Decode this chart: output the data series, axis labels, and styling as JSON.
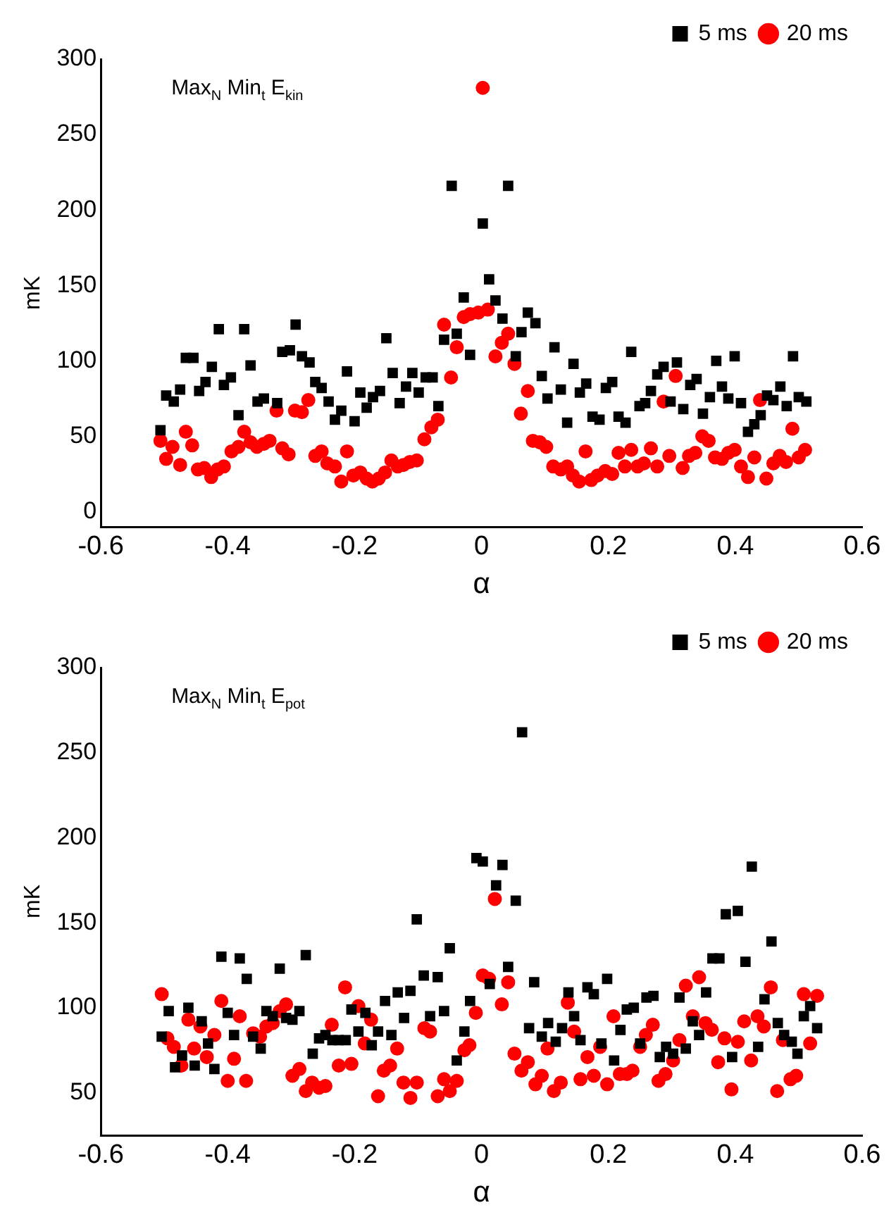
{
  "chart_data": [
    {
      "type": "scatter",
      "title": "Max$_{N}$ Min$_{t}$ E$_{kin}$",
      "xlabel": "α",
      "ylabel": "mK",
      "xlim": [
        -0.6,
        0.6
      ],
      "xticks": [
        -0.6,
        -0.4,
        -0.2,
        0,
        0.2,
        0.4,
        0.6
      ],
      "ylim": [
        -10,
        300
      ],
      "yticks": [
        0,
        50,
        100,
        150,
        200,
        250,
        300
      ],
      "legend": "top right",
      "series": [
        {
          "name": "5 ms",
          "color": "#000000",
          "marker": "square",
          "x": [
            -0.506,
            -0.497,
            -0.485,
            -0.475,
            -0.466,
            -0.454,
            -0.445,
            -0.435,
            -0.425,
            -0.414,
            -0.406,
            -0.395,
            -0.383,
            -0.374,
            -0.364,
            -0.353,
            -0.343,
            -0.322,
            -0.314,
            -0.302,
            -0.293,
            -0.283,
            -0.271,
            -0.262,
            -0.252,
            -0.241,
            -0.231,
            -0.221,
            -0.212,
            -0.2,
            -0.191,
            -0.181,
            -0.171,
            -0.16,
            -0.15,
            -0.14,
            -0.129,
            -0.119,
            -0.109,
            -0.099,
            -0.088,
            -0.077,
            -0.068,
            -0.059,
            -0.047,
            -0.039,
            -0.028,
            -0.018,
            0.002,
            0.012,
            0.022,
            0.033,
            0.042,
            0.054,
            0.063,
            0.073,
            0.085,
            0.095,
            0.104,
            0.115,
            0.125,
            0.135,
            0.145,
            0.155,
            0.165,
            0.175,
            0.186,
            0.196,
            0.206,
            0.216,
            0.227,
            0.236,
            0.249,
            0.258,
            0.267,
            0.277,
            0.287,
            0.298,
            0.308,
            0.318,
            0.329,
            0.339,
            0.349,
            0.36,
            0.37,
            0.379,
            0.389,
            0.399,
            0.409,
            0.42,
            0.43,
            0.44,
            0.45,
            0.46,
            0.471,
            0.481,
            0.491,
            0.5,
            0.512
          ],
          "values": [
            54,
            77,
            73,
            81,
            102,
            102,
            80,
            86,
            96,
            121,
            84,
            89,
            64,
            121,
            97,
            73,
            75,
            72,
            106,
            107,
            124,
            103,
            99,
            86,
            82,
            73,
            61,
            67,
            93,
            60,
            79,
            69,
            76,
            80,
            115,
            92,
            72,
            83,
            92,
            79,
            89,
            89,
            70,
            114,
            216,
            118,
            142,
            104,
            191,
            154,
            140,
            128,
            216,
            103,
            119,
            132,
            125,
            90,
            75,
            109,
            81,
            59,
            98,
            79,
            85,
            63,
            61,
            82,
            86,
            63,
            59,
            106,
            70,
            72,
            80,
            91,
            96,
            73,
            99,
            68,
            84,
            88,
            65,
            76,
            100,
            83,
            75,
            103,
            72,
            53,
            58,
            64,
            77,
            74,
            83,
            70,
            103,
            76,
            73
          ]
        },
        {
          "name": "20 ms",
          "color": "#ff0000",
          "marker": "circle",
          "x": [
            -0.506,
            -0.497,
            -0.487,
            -0.475,
            -0.466,
            -0.456,
            -0.447,
            -0.437,
            -0.426,
            -0.416,
            -0.406,
            -0.394,
            -0.383,
            -0.374,
            -0.364,
            -0.354,
            -0.343,
            -0.334,
            -0.323,
            -0.314,
            -0.304,
            -0.294,
            -0.283,
            -0.273,
            -0.262,
            -0.252,
            -0.243,
            -0.231,
            -0.221,
            -0.212,
            -0.202,
            -0.191,
            -0.181,
            -0.172,
            -0.162,
            -0.152,
            -0.142,
            -0.132,
            -0.123,
            -0.113,
            -0.102,
            -0.09,
            -0.079,
            -0.069,
            -0.059,
            -0.048,
            -0.039,
            -0.028,
            -0.018,
            -0.005,
            0.002,
            0.01,
            0.022,
            0.032,
            0.042,
            0.052,
            0.062,
            0.073,
            0.081,
            0.092,
            0.102,
            0.113,
            0.125,
            0.135,
            0.144,
            0.154,
            0.164,
            0.173,
            0.183,
            0.195,
            0.206,
            0.216,
            0.226,
            0.236,
            0.246,
            0.256,
            0.267,
            0.277,
            0.287,
            0.296,
            0.306,
            0.317,
            0.327,
            0.337,
            0.348,
            0.358,
            0.368,
            0.379,
            0.389,
            0.399,
            0.409,
            0.42,
            0.43,
            0.439,
            0.449,
            0.46,
            0.47,
            0.48,
            0.49,
            0.5,
            0.51
          ],
          "values": [
            47,
            35,
            43,
            31,
            53,
            44,
            28,
            29,
            23,
            28,
            30,
            40,
            43,
            53,
            46,
            43,
            45,
            47,
            67,
            42,
            38,
            67,
            66,
            74,
            37,
            40,
            32,
            30,
            20,
            40,
            24,
            26,
            22,
            20,
            22,
            26,
            34,
            30,
            31,
            33,
            34,
            48,
            56,
            61,
            124,
            89,
            109,
            129,
            131,
            132,
            281,
            134,
            103,
            112,
            118,
            98,
            65,
            80,
            47,
            46,
            43,
            30,
            28,
            30,
            24,
            20,
            40,
            21,
            24,
            27,
            25,
            39,
            30,
            41,
            30,
            32,
            42,
            30,
            73,
            37,
            90,
            29,
            37,
            39,
            50,
            47,
            36,
            35,
            39,
            41,
            30,
            23,
            36,
            74,
            22,
            32,
            37,
            33,
            55,
            36,
            41
          ]
        }
      ]
    },
    {
      "type": "scatter",
      "title": "Max$_{N}$ Min$_{t}$ E$_{pot}$",
      "xlabel": "α",
      "ylabel": "mK",
      "xlim": [
        -0.6,
        0.6
      ],
      "xticks": [
        -0.6,
        -0.4,
        -0.2,
        0,
        0.2,
        0.4,
        0.6
      ],
      "ylim": [
        25,
        300
      ],
      "yticks": [
        50,
        100,
        150,
        200,
        250,
        300
      ],
      "legend": "top right",
      "series": [
        {
          "name": "5 ms",
          "color": "#000000",
          "marker": "square",
          "x": [
            -0.504,
            -0.493,
            -0.483,
            -0.472,
            -0.462,
            -0.452,
            -0.441,
            -0.431,
            -0.421,
            -0.41,
            -0.4,
            -0.39,
            -0.381,
            -0.37,
            -0.36,
            -0.348,
            -0.339,
            -0.329,
            -0.318,
            -0.308,
            -0.298,
            -0.287,
            -0.277,
            -0.266,
            -0.256,
            -0.246,
            -0.235,
            -0.225,
            -0.214,
            -0.205,
            -0.194,
            -0.183,
            -0.173,
            -0.163,
            -0.152,
            -0.142,
            -0.132,
            -0.122,
            -0.112,
            -0.102,
            -0.091,
            -0.081,
            -0.069,
            -0.059,
            -0.05,
            -0.039,
            -0.027,
            -0.018,
            -0.008,
            0.002,
            0.013,
            0.023,
            0.033,
            0.042,
            0.054,
            0.064,
            0.075,
            0.083,
            0.095,
            0.105,
            0.117,
            0.127,
            0.137,
            0.146,
            0.156,
            0.167,
            0.177,
            0.189,
            0.198,
            0.209,
            0.219,
            0.229,
            0.24,
            0.25,
            0.26,
            0.271,
            0.281,
            0.291,
            0.302,
            0.312,
            0.322,
            0.333,
            0.343,
            0.354,
            0.364,
            0.375,
            0.385,
            0.395,
            0.404,
            0.416,
            0.426,
            0.436,
            0.446,
            0.457,
            0.467,
            0.477,
            0.489,
            0.498,
            0.508,
            0.518,
            0.529
          ],
          "values": [
            83,
            98,
            65,
            72,
            100,
            66,
            92,
            79,
            64,
            130,
            97,
            84,
            129,
            117,
            83,
            76,
            98,
            95,
            123,
            94,
            93,
            98,
            131,
            73,
            82,
            84,
            81,
            81,
            81,
            99,
            86,
            97,
            78,
            86,
            104,
            84,
            109,
            94,
            110,
            152,
            119,
            95,
            118,
            98,
            135,
            69,
            86,
            104,
            188,
            186,
            114,
            172,
            184,
            124,
            163,
            262,
            88,
            115,
            83,
            91,
            80,
            88,
            109,
            95,
            81,
            112,
            108,
            79,
            117,
            69,
            87,
            99,
            100,
            79,
            106,
            107,
            71,
            77,
            73,
            106,
            76,
            92,
            84,
            109,
            129,
            129,
            155,
            71,
            157,
            127,
            183,
            77,
            105,
            139,
            91,
            84,
            80,
            73,
            95,
            101,
            88
          ]
        },
        {
          "name": "20 ms",
          "color": "#ff0000",
          "marker": "circle",
          "x": [
            -0.504,
            -0.495,
            -0.485,
            -0.473,
            -0.462,
            -0.453,
            -0.443,
            -0.433,
            -0.421,
            -0.41,
            -0.4,
            -0.39,
            -0.381,
            -0.371,
            -0.36,
            -0.349,
            -0.339,
            -0.329,
            -0.318,
            -0.308,
            -0.298,
            -0.287,
            -0.277,
            -0.267,
            -0.256,
            -0.246,
            -0.236,
            -0.225,
            -0.215,
            -0.205,
            -0.194,
            -0.184,
            -0.174,
            -0.163,
            -0.154,
            -0.144,
            -0.133,
            -0.123,
            -0.112,
            -0.102,
            -0.09,
            -0.081,
            -0.069,
            -0.059,
            -0.05,
            -0.039,
            -0.027,
            -0.019,
            -0.009,
            0.002,
            0.012,
            0.021,
            0.032,
            0.042,
            0.052,
            0.063,
            0.073,
            0.085,
            0.095,
            0.104,
            0.114,
            0.125,
            0.136,
            0.146,
            0.156,
            0.167,
            0.177,
            0.187,
            0.198,
            0.208,
            0.218,
            0.229,
            0.238,
            0.25,
            0.259,
            0.27,
            0.279,
            0.29,
            0.302,
            0.312,
            0.322,
            0.333,
            0.343,
            0.353,
            0.363,
            0.373,
            0.383,
            0.394,
            0.404,
            0.414,
            0.425,
            0.435,
            0.445,
            0.456,
            0.466,
            0.475,
            0.487,
            0.496,
            0.508,
            0.518,
            0.529
          ],
          "values": [
            108,
            82,
            77,
            66,
            93,
            76,
            89,
            71,
            84,
            104,
            57,
            70,
            95,
            57,
            85,
            83,
            89,
            91,
            98,
            102,
            60,
            64,
            51,
            56,
            53,
            54,
            90,
            66,
            112,
            67,
            101,
            79,
            93,
            48,
            63,
            66,
            76,
            56,
            47,
            56,
            88,
            86,
            48,
            58,
            51,
            57,
            75,
            78,
            97,
            119,
            117,
            164,
            102,
            115,
            73,
            63,
            68,
            55,
            60,
            76,
            51,
            56,
            103,
            86,
            58,
            71,
            60,
            77,
            55,
            95,
            61,
            61,
            63,
            77,
            84,
            90,
            57,
            61,
            69,
            81,
            113,
            95,
            118,
            91,
            87,
            68,
            82,
            52,
            80,
            92,
            69,
            95,
            89,
            112,
            51,
            81,
            58,
            60,
            108,
            79,
            107
          ]
        }
      ]
    }
  ]
}
